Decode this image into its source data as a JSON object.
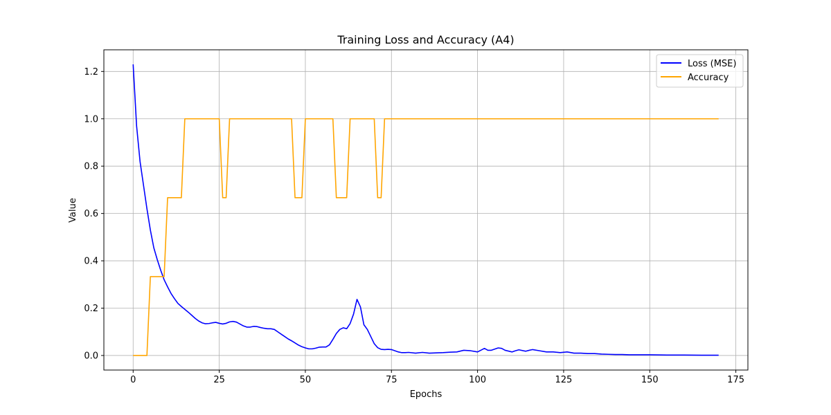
{
  "chart_data": {
    "type": "line",
    "title": "Training Loss and Accuracy (A4)",
    "xlabel": "Epochs",
    "ylabel": "Value",
    "xlim": [
      -8.5,
      178.5
    ],
    "ylim": [
      -0.0615,
      1.2915
    ],
    "xticks": [
      0,
      25,
      50,
      75,
      100,
      125,
      150,
      175
    ],
    "yticks": [
      0.0,
      0.2,
      0.4,
      0.6,
      0.8,
      1.0,
      1.2
    ],
    "xtick_labels": [
      "0",
      "25",
      "50",
      "75",
      "100",
      "125",
      "150",
      "175"
    ],
    "ytick_labels": [
      "0.0",
      "0.2",
      "0.4",
      "0.6",
      "0.8",
      "1.0",
      "1.2"
    ],
    "grid": true,
    "legend_position": "top-right",
    "series": [
      {
        "name": "Loss (MSE)",
        "color": "#0000ff",
        "x": [
          0,
          1,
          2,
          3,
          4,
          5,
          6,
          7,
          8,
          9,
          10,
          11,
          12,
          13,
          14,
          15,
          16,
          17,
          18,
          19,
          20,
          21,
          22,
          23,
          24,
          25,
          26,
          27,
          28,
          29,
          30,
          31,
          32,
          33,
          34,
          35,
          36,
          37,
          38,
          39,
          40,
          41,
          42,
          43,
          44,
          45,
          46,
          47,
          48,
          49,
          50,
          51,
          52,
          53,
          54,
          55,
          56,
          57,
          58,
          59,
          60,
          61,
          62,
          63,
          64,
          65,
          66,
          67,
          68,
          69,
          70,
          71,
          72,
          73,
          74,
          75,
          76,
          77,
          78,
          79,
          80,
          82,
          84,
          86,
          88,
          90,
          92,
          94,
          96,
          98,
          100,
          102,
          103,
          104,
          106,
          107,
          108,
          110,
          111,
          112,
          114,
          115,
          116,
          118,
          120,
          122,
          124,
          126,
          128,
          130,
          132,
          134,
          136,
          138,
          140,
          142,
          144,
          146,
          148,
          150,
          155,
          160,
          165,
          170
        ],
        "y": [
          1.23,
          0.97,
          0.82,
          0.72,
          0.62,
          0.53,
          0.455,
          0.405,
          0.36,
          0.32,
          0.29,
          0.262,
          0.24,
          0.22,
          0.207,
          0.195,
          0.183,
          0.17,
          0.157,
          0.146,
          0.138,
          0.134,
          0.135,
          0.138,
          0.14,
          0.136,
          0.133,
          0.136,
          0.142,
          0.144,
          0.141,
          0.133,
          0.125,
          0.12,
          0.12,
          0.123,
          0.122,
          0.118,
          0.115,
          0.113,
          0.113,
          0.11,
          0.1,
          0.09,
          0.08,
          0.07,
          0.062,
          0.053,
          0.044,
          0.037,
          0.032,
          0.028,
          0.028,
          0.031,
          0.035,
          0.036,
          0.036,
          0.045,
          0.068,
          0.093,
          0.11,
          0.117,
          0.113,
          0.135,
          0.175,
          0.237,
          0.205,
          0.13,
          0.11,
          0.08,
          0.05,
          0.033,
          0.026,
          0.025,
          0.026,
          0.025,
          0.02,
          0.015,
          0.012,
          0.012,
          0.013,
          0.01,
          0.013,
          0.01,
          0.011,
          0.012,
          0.014,
          0.015,
          0.022,
          0.02,
          0.015,
          0.03,
          0.022,
          0.022,
          0.032,
          0.03,
          0.022,
          0.015,
          0.02,
          0.024,
          0.018,
          0.022,
          0.025,
          0.02,
          0.015,
          0.015,
          0.012,
          0.015,
          0.01,
          0.01,
          0.008,
          0.008,
          0.006,
          0.005,
          0.004,
          0.004,
          0.003,
          0.003,
          0.003,
          0.003,
          0.002,
          0.002,
          0.001,
          0.001
        ]
      },
      {
        "name": "Accuracy",
        "color": "#ffa500",
        "x": [
          0,
          4,
          5,
          9,
          10,
          14,
          15,
          25,
          26,
          27,
          28,
          46,
          47,
          49,
          50,
          58,
          59,
          62,
          63,
          70,
          71,
          72,
          73,
          170
        ],
        "y": [
          0.0,
          0.0,
          0.3333,
          0.3333,
          0.6667,
          0.6667,
          1.0,
          1.0,
          0.6667,
          0.6667,
          1.0,
          1.0,
          0.6667,
          0.6667,
          1.0,
          1.0,
          0.6667,
          0.6667,
          1.0,
          1.0,
          0.6667,
          0.6667,
          1.0,
          1.0
        ]
      }
    ]
  }
}
